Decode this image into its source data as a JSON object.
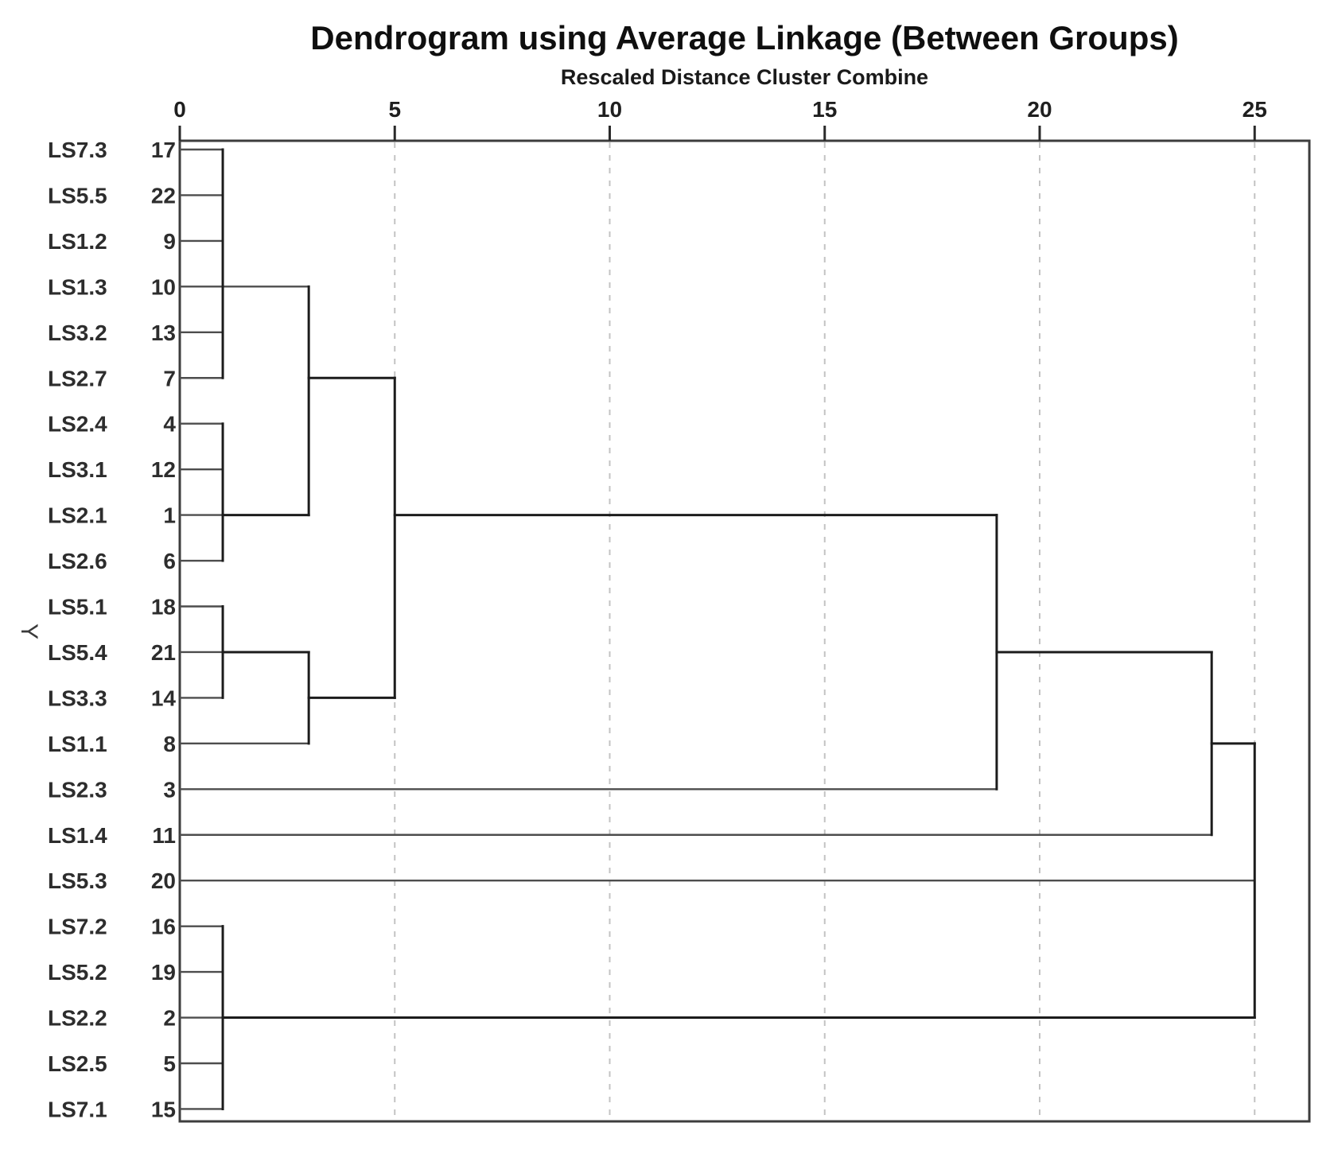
{
  "chart": {
    "title": "Dendrogram using Average Linkage (Between Groups)",
    "subtitle": "Rescaled Distance Cluster Combine",
    "y_axis_label": "Y",
    "x_axis": {
      "ticks": [
        0,
        5,
        10,
        15,
        20,
        25
      ],
      "range": [
        0,
        26.3
      ],
      "gridlines_at": [
        5,
        10,
        15,
        20,
        25
      ],
      "grid_style": "dashed"
    }
  },
  "rows": [
    {
      "label": "LS7.3",
      "case": "17"
    },
    {
      "label": "LS5.5",
      "case": "22"
    },
    {
      "label": "LS1.2",
      "case": "9"
    },
    {
      "label": "LS1.3",
      "case": "10"
    },
    {
      "label": "LS3.2",
      "case": "13"
    },
    {
      "label": "LS2.7",
      "case": "7"
    },
    {
      "label": "LS2.4",
      "case": "4"
    },
    {
      "label": "LS3.1",
      "case": "12"
    },
    {
      "label": "LS2.1",
      "case": "1"
    },
    {
      "label": "LS2.6",
      "case": "6"
    },
    {
      "label": "LS5.1",
      "case": "18"
    },
    {
      "label": "LS5.4",
      "case": "21"
    },
    {
      "label": "LS3.3",
      "case": "14"
    },
    {
      "label": "LS1.1",
      "case": "8"
    },
    {
      "label": "LS2.3",
      "case": "3"
    },
    {
      "label": "LS1.4",
      "case": "11"
    },
    {
      "label": "LS5.3",
      "case": "20"
    },
    {
      "label": "LS7.2",
      "case": "16"
    },
    {
      "label": "LS5.2",
      "case": "19"
    },
    {
      "label": "LS2.2",
      "case": "2"
    },
    {
      "label": "LS2.5",
      "case": "5"
    },
    {
      "label": "LS7.1",
      "case": "15"
    }
  ],
  "chart_data": {
    "type": "dendrogram",
    "orientation": "horizontal",
    "linkage": "average (between groups)",
    "distance_axis_label": "Rescaled Distance Cluster Combine",
    "xlim": [
      0,
      26.3
    ],
    "leaves_top_to_bottom": [
      "17",
      "22",
      "9",
      "10",
      "13",
      "7",
      "4",
      "12",
      "1",
      "6",
      "18",
      "21",
      "14",
      "8",
      "3",
      "11",
      "20",
      "16",
      "19",
      "2",
      "5",
      "15"
    ],
    "leaf_labels_top_to_bottom": [
      "LS7.3",
      "LS5.5",
      "LS1.2",
      "LS1.3",
      "LS3.2",
      "LS2.7",
      "LS2.4",
      "LS3.1",
      "LS2.1",
      "LS2.6",
      "LS5.1",
      "LS5.4",
      "LS3.3",
      "LS1.1",
      "LS2.3",
      "LS1.4",
      "LS5.3",
      "LS7.2",
      "LS5.2",
      "LS2.2",
      "LS2.5",
      "LS7.1"
    ],
    "merges": [
      {
        "id": "C1",
        "members": [
          "17",
          "22",
          "9",
          "10",
          "13",
          "7"
        ],
        "distance": 1.0
      },
      {
        "id": "C2",
        "members": [
          "4",
          "12",
          "1",
          "6"
        ],
        "distance": 1.0
      },
      {
        "id": "C3",
        "members": [
          "18",
          "21",
          "14"
        ],
        "distance": 1.0
      },
      {
        "id": "C4",
        "members": [
          "16",
          "19",
          "2",
          "5",
          "15"
        ],
        "distance": 1.0
      },
      {
        "id": "M5",
        "joins": [
          "C1",
          "C2"
        ],
        "distance": 3.0
      },
      {
        "id": "M6",
        "joins": [
          "C3",
          "8"
        ],
        "distance": 3.0
      },
      {
        "id": "M7",
        "joins": [
          "M5",
          "M6"
        ],
        "distance": 5.0
      },
      {
        "id": "M8",
        "joins": [
          "M7",
          "3"
        ],
        "distance": 19.0
      },
      {
        "id": "M9",
        "joins": [
          "M8",
          "11"
        ],
        "distance": 24.0
      },
      {
        "id": "M10",
        "joins": [
          "M9",
          "20"
        ],
        "distance": 25.0
      },
      {
        "id": "M11",
        "joins": [
          "M10",
          "C4"
        ],
        "distance": 25.0
      }
    ],
    "render": {
      "leaf_line_end_distance": [
        1.0,
        1.0,
        1.0,
        3.0,
        1.0,
        1.0,
        1.0,
        1.0,
        1.0,
        1.0,
        1.0,
        1.0,
        1.0,
        3.0,
        19.0,
        24.0,
        25.0,
        1.0,
        1.0,
        1.0,
        1.0,
        1.0
      ],
      "verticals": [
        {
          "d": 1.0,
          "r1": 0,
          "r2": 5
        },
        {
          "d": 1.0,
          "r1": 6,
          "r2": 9
        },
        {
          "d": 1.0,
          "r1": 10,
          "r2": 12
        },
        {
          "d": 1.0,
          "r1": 17,
          "r2": 21
        },
        {
          "d": 3.0,
          "r1": 3,
          "r2": 8
        },
        {
          "d": 3.0,
          "r1": 11,
          "r2": 13
        },
        {
          "d": 5.0,
          "r1": 5,
          "r2": 12
        },
        {
          "d": 19.0,
          "r1": 8,
          "r2": 14
        },
        {
          "d": 24.0,
          "r1": 11,
          "r2": 15
        },
        {
          "d": 25.0,
          "r1": 13,
          "r2": 19
        }
      ],
      "horizontals": [
        {
          "r": 8,
          "d1": 1.0,
          "d2": 3.0
        },
        {
          "r": 11,
          "d1": 1.0,
          "d2": 3.0
        },
        {
          "r": 19,
          "d1": 1.0,
          "d2": 25.0
        },
        {
          "r": 5,
          "d1": 3.0,
          "d2": 5.0
        },
        {
          "r": 12,
          "d1": 3.0,
          "d2": 5.0
        },
        {
          "r": 8,
          "d1": 5.0,
          "d2": 19.0
        },
        {
          "r": 11,
          "d1": 19.0,
          "d2": 24.0
        },
        {
          "r": 13,
          "d1": 24.0,
          "d2": 25.0
        }
      ]
    },
    "colors": {
      "leaf_line": "#4d4d4d",
      "cluster_line": "#1c1c1c",
      "frame": "#3d3d3d",
      "gridline": "#c3c3c3",
      "text": "#2d2d2d"
    }
  }
}
